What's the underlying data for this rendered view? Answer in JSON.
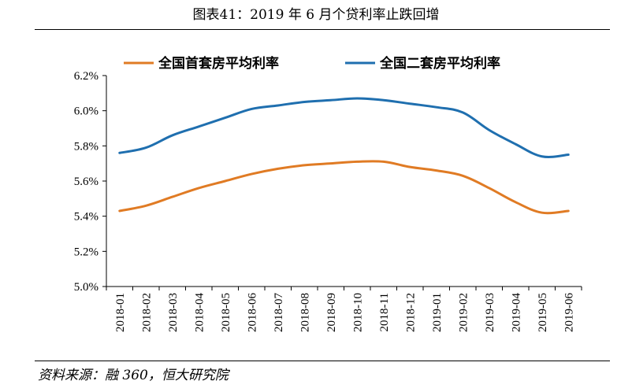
{
  "header": {
    "title": "图表41：2019 年 6 月个贷利率止跌回增"
  },
  "footer": {
    "source": "资料来源：融 360，恒大研究院"
  },
  "chart_data": {
    "type": "line",
    "categories": [
      "2018-01",
      "2018-02",
      "2018-03",
      "2018-04",
      "2018-05",
      "2018-06",
      "2018-07",
      "2018-08",
      "2018-09",
      "2018-10",
      "2018-11",
      "2018-12",
      "2019-01",
      "2019-02",
      "2019-03",
      "2019-04",
      "2019-05",
      "2019-06"
    ],
    "series": [
      {
        "name": "全国首套房平均利率",
        "color": "#E07B24",
        "values": [
          5.43,
          5.46,
          5.51,
          5.56,
          5.6,
          5.64,
          5.67,
          5.69,
          5.7,
          5.71,
          5.71,
          5.68,
          5.66,
          5.63,
          5.56,
          5.48,
          5.42,
          5.43
        ]
      },
      {
        "name": "全国二套房平均利率",
        "color": "#1F6FAF",
        "values": [
          5.76,
          5.79,
          5.86,
          5.91,
          5.96,
          6.01,
          6.03,
          6.05,
          6.06,
          6.07,
          6.06,
          6.04,
          6.02,
          5.99,
          5.89,
          5.81,
          5.74,
          5.75
        ]
      }
    ],
    "ylim": [
      5.0,
      6.2
    ],
    "yticks": [
      "5.0%",
      "5.2%",
      "5.4%",
      "5.6%",
      "5.8%",
      "6.0%",
      "6.2%"
    ],
    "xlabel": "",
    "ylabel": "",
    "legend": "top",
    "grid": false
  }
}
